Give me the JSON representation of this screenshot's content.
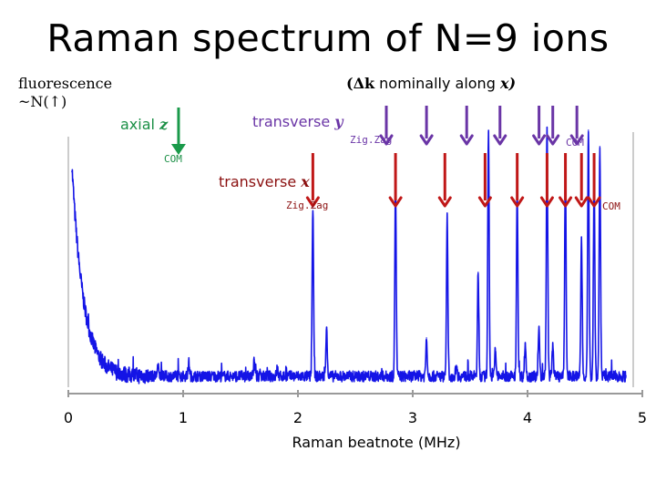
{
  "title": "Raman spectrum of N=9 ions",
  "labels": {
    "fluorescence_line1": "fluorescence",
    "fluorescence_line2": "~N(↑)",
    "dk_prefix": "(Δk",
    "dk_text": " nominally along ",
    "dk_var": "x)",
    "axial_text": "axial ",
    "axial_var": "z",
    "axial_com": "COM",
    "ty_text": "transverse ",
    "ty_var": "y",
    "ty_zigzag": "Zig.Zag",
    "ty_com": "COM",
    "tx_text": "transverse ",
    "tx_var": "x",
    "tx_zigzag": "Zig.Zag",
    "tx_com": "COM"
  },
  "colors": {
    "spectrum": "#1414e6",
    "axial_arrow": "#1a9a4a",
    "transverse_y_arrow": "#6a35a6",
    "transverse_x_arrow": "#c01717",
    "axial_label": "#1a8f45",
    "transverse_y_label": "#6a35a6",
    "transverse_x_label": "#8b1010"
  },
  "chart_data": {
    "type": "line",
    "title": "Raman spectrum of N=9 ions",
    "xlabel": "Raman beatnote (MHz)",
    "ylabel": "",
    "xlim": [
      0,
      5
    ],
    "ylim": [
      0,
      1
    ],
    "xticks": [
      0,
      1,
      2,
      3,
      4,
      5
    ],
    "baseline": 0.04,
    "fluorescence_decay": {
      "x_start": 0.03,
      "amplitude": 0.78,
      "decay_MHz": 0.1
    },
    "series": [
      {
        "values": [
          {
            "x": 0.78,
            "y": 0.08
          },
          {
            "x": 1.05,
            "y": 0.09
          },
          {
            "x": 1.3,
            "y": 0.04
          },
          {
            "x": 1.62,
            "y": 0.1
          },
          {
            "x": 1.82,
            "y": 0.07
          },
          {
            "x": 2.13,
            "y": 0.66
          },
          {
            "x": 2.25,
            "y": 0.22
          },
          {
            "x": 2.85,
            "y": 0.76
          },
          {
            "x": 3.12,
            "y": 0.18
          },
          {
            "x": 3.3,
            "y": 0.62
          },
          {
            "x": 3.38,
            "y": 0.08
          },
          {
            "x": 3.57,
            "y": 0.42
          },
          {
            "x": 3.66,
            "y": 0.93
          },
          {
            "x": 3.72,
            "y": 0.14
          },
          {
            "x": 3.91,
            "y": 0.72
          },
          {
            "x": 3.98,
            "y": 0.16
          },
          {
            "x": 4.1,
            "y": 0.22
          },
          {
            "x": 4.17,
            "y": 0.95
          },
          {
            "x": 4.22,
            "y": 0.16
          },
          {
            "x": 4.33,
            "y": 0.8
          },
          {
            "x": 4.47,
            "y": 0.55
          },
          {
            "x": 4.53,
            "y": 0.94
          },
          {
            "x": 4.58,
            "y": 0.8
          },
          {
            "x": 4.63,
            "y": 0.88
          }
        ]
      }
    ],
    "markers": [
      {
        "group": "axial z",
        "x": 0.96,
        "color": "#1a9a4a"
      },
      {
        "group": "transverse y",
        "x": 2.77,
        "color": "#6a35a6"
      },
      {
        "group": "transverse y",
        "x": 3.12,
        "color": "#6a35a6"
      },
      {
        "group": "transverse y",
        "x": 3.47,
        "color": "#6a35a6"
      },
      {
        "group": "transverse y",
        "x": 3.76,
        "color": "#6a35a6"
      },
      {
        "group": "transverse y",
        "x": 4.1,
        "color": "#6a35a6"
      },
      {
        "group": "transverse y",
        "x": 4.22,
        "color": "#6a35a6"
      },
      {
        "group": "transverse y",
        "x": 4.43,
        "color": "#6a35a6"
      },
      {
        "group": "transverse x",
        "x": 2.13,
        "color": "#c01717"
      },
      {
        "group": "transverse x",
        "x": 2.85,
        "color": "#c01717"
      },
      {
        "group": "transverse x",
        "x": 3.28,
        "color": "#c01717"
      },
      {
        "group": "transverse x",
        "x": 3.63,
        "color": "#c01717"
      },
      {
        "group": "transverse x",
        "x": 3.91,
        "color": "#c01717"
      },
      {
        "group": "transverse x",
        "x": 4.17,
        "color": "#c01717"
      },
      {
        "group": "transverse x",
        "x": 4.33,
        "color": "#c01717"
      },
      {
        "group": "transverse x",
        "x": 4.47,
        "color": "#c01717"
      },
      {
        "group": "transverse x",
        "x": 4.58,
        "color": "#c01717"
      }
    ]
  }
}
